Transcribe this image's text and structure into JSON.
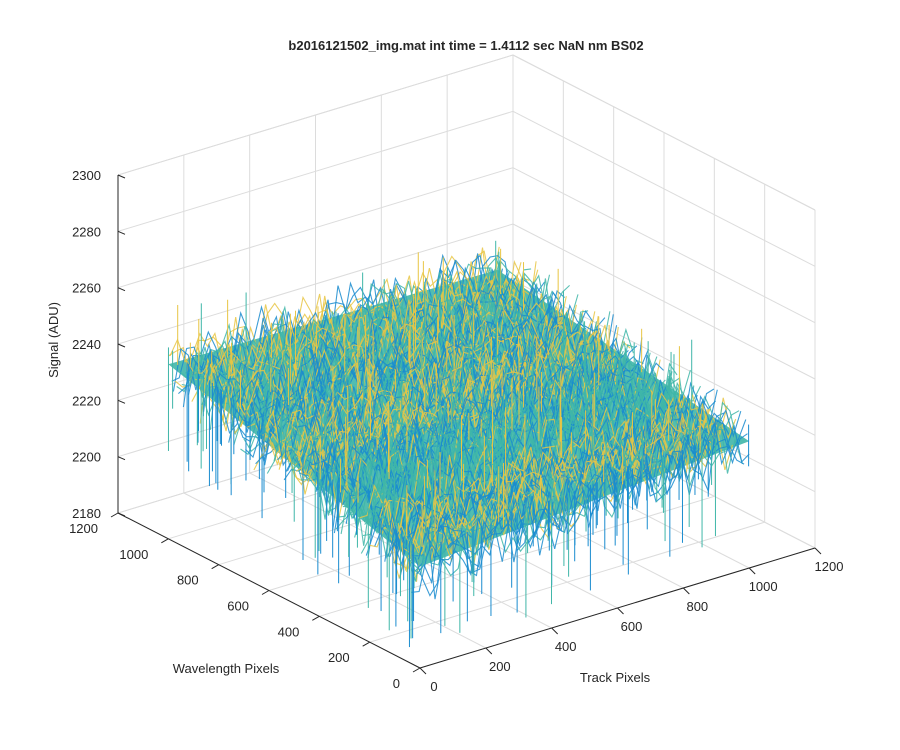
{
  "chart_data": {
    "type": "surface",
    "title": "b2016121502_img.mat int time = 1.4112 sec  NaN nm BS02",
    "xlabel": "Track Pixels",
    "ylabel": "Wavelength Pixels",
    "zlabel": "Signal (ADU)",
    "x_ticks": [
      "0",
      "200",
      "400",
      "600",
      "800",
      "1000",
      "1200"
    ],
    "y_ticks": [
      "0",
      "200",
      "400",
      "600",
      "800",
      "1000",
      "1200"
    ],
    "z_ticks": [
      "2180",
      "2200",
      "2220",
      "2240",
      "2260",
      "2280",
      "2300"
    ],
    "xlim": [
      0,
      1200
    ],
    "ylim": [
      0,
      1200
    ],
    "zlim": [
      2180,
      2300
    ],
    "grid": true,
    "colormap": "parula",
    "colors": {
      "low": "#1a8ccf",
      "mid": "#3fb6a8",
      "high": "#e8c544",
      "axis": "#262626",
      "grid": "#dcdcdc"
    },
    "surface_profile": [
      {
        "track": 0,
        "wavelength": 0,
        "signal": 2216
      },
      {
        "track": 1000,
        "wavelength": 0,
        "signal": 2225
      },
      {
        "track": 1000,
        "wavelength": 1000,
        "signal": 2240
      },
      {
        "track": 0,
        "wavelength": 1000,
        "signal": 2242
      },
      {
        "track": 500,
        "wavelength": 500,
        "signal": 2240
      }
    ],
    "noise_amplitude": 12
  }
}
